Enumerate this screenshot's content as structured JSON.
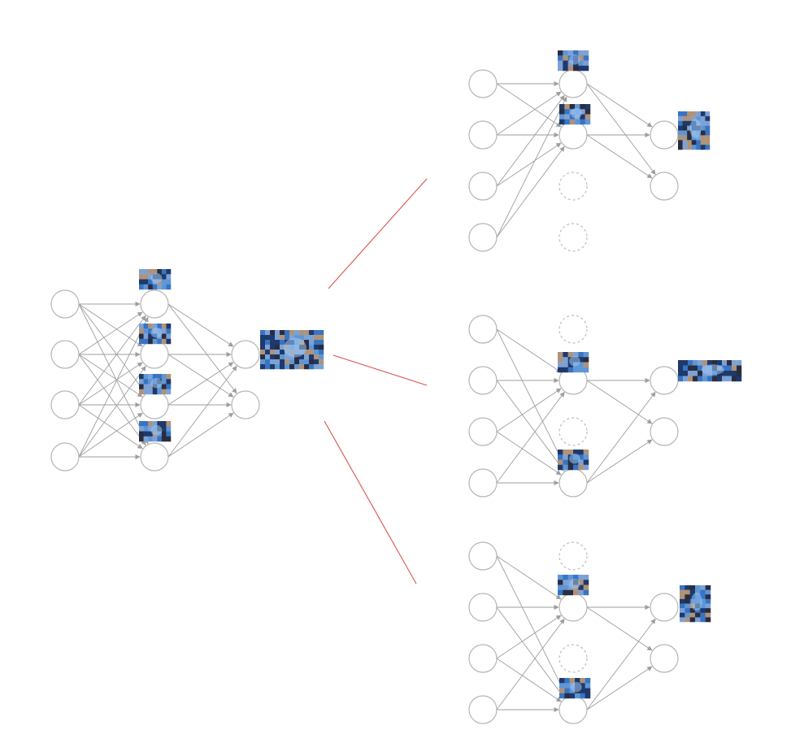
{
  "diagram": {
    "kind": "neural-network-dropout",
    "colors": {
      "background": "#ffffff",
      "node_stroke": "#b5b5b5",
      "dropped_node_stroke": "#bdbdbd",
      "edge": "#9e9e9e",
      "connector": "#d9534f"
    },
    "image_palette": [
      "#1f3a6b",
      "#3d7fd1",
      "#8fb4e6",
      "#c9a27a",
      "#2b2b3a",
      "#6aa7e8"
    ],
    "full_network": {
      "layers": [
        {
          "name": "input",
          "nodes": 4
        },
        {
          "name": "hidden",
          "nodes": 4
        },
        {
          "name": "output",
          "nodes": 2
        }
      ],
      "hidden_features": 4,
      "composite_image": true
    },
    "thinned_networks": [
      {
        "kept_hidden": [
          0,
          1
        ],
        "dropped_hidden": [
          2,
          3
        ],
        "output_image_on": 0
      },
      {
        "kept_hidden": [
          1,
          3
        ],
        "dropped_hidden": [
          0,
          2
        ],
        "output_image_on": 0
      },
      {
        "kept_hidden": [
          1,
          3
        ],
        "dropped_hidden": [
          0,
          2
        ],
        "output_image_on": 0
      }
    ]
  }
}
